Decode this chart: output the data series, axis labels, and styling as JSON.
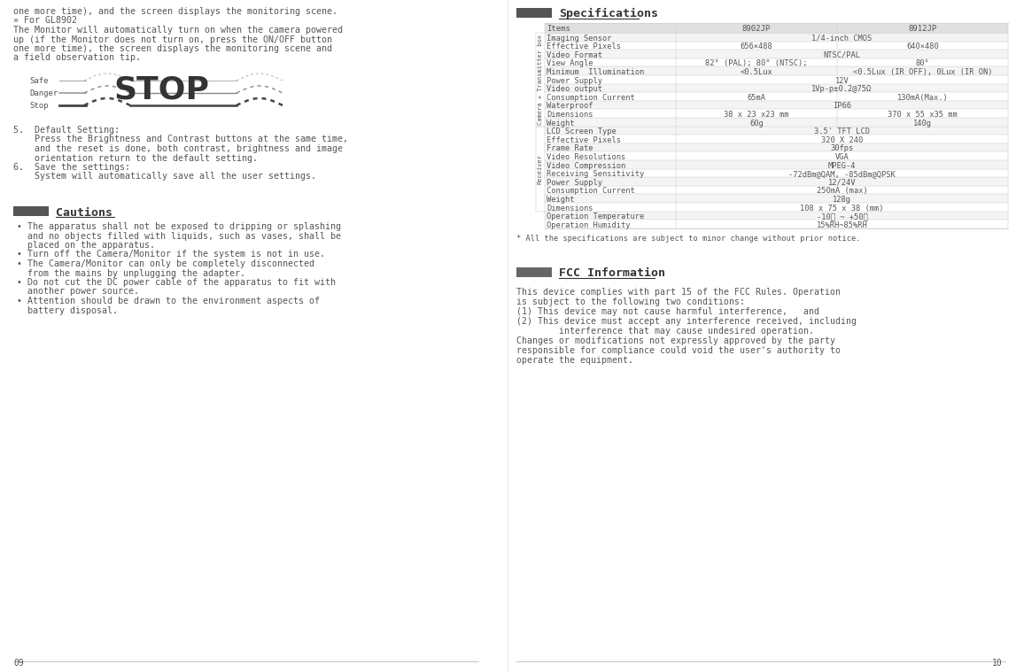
{
  "bg_color": "#ffffff",
  "text_color": "#555555",
  "dark_color": "#333333",
  "left_page": {
    "lines_top": [
      "one more time), and the screen displays the monitoring scene.",
      "» For GL8902",
      "The Monitor will automatically turn on when the camera powered",
      "up (if the Monitor does not turn on, press the ON/OFF button",
      "one more time), the screen displays the monitoring scene and",
      "a field observation tip."
    ],
    "items_5_6": [
      "5.  Default Setting:",
      "    Press the Brightness and Contrast buttons at the same time,",
      "    and the reset is done, both contrast, brightness and image",
      "    orientation return to the default setting.",
      "6.  Save the settings:",
      "    System will automatically save all the user settings."
    ],
    "cautions_title": "Cautions",
    "cautions_items": [
      [
        "The apparatus shall not be exposed to dripping or splashing",
        "and no objects filled with liquids, such as vases, shall be",
        "placed on the apparatus."
      ],
      [
        "Turn off the Camera/Monitor if the system is not in use."
      ],
      [
        "The Camera/Monitor can only be completely disconnected",
        "from the mains by unplugging the adapter."
      ],
      [
        "Do not cut the DC power cable of the apparatus to fit with",
        "another power source."
      ],
      [
        "Attention should be drawn to the environment aspects of",
        "battery disposal."
      ]
    ],
    "page_num": "09"
  },
  "right_page": {
    "spec_title": "Specifications",
    "spec_table": {
      "headers": [
        "Items",
        "8902JP",
        "8912JP"
      ],
      "camera_transmitter_rows": [
        [
          "Imaging Sensor",
          "1/4-inch CMOS",
          ""
        ],
        [
          "Effective Pixels",
          "656×488",
          "640×480"
        ],
        [
          "Video Format",
          "NTSC/PAL",
          ""
        ],
        [
          "View Angle",
          "82° (PAL); 80° (NTSC);",
          "80°"
        ],
        [
          "Minimum  Illumination",
          "<0.5Lux",
          "<0.5Lux (IR OFF), 0Lux (IR ON)"
        ],
        [
          "Power Supply",
          "12V",
          ""
        ],
        [
          "Video output",
          "1Vp-p±0.2@75Ω",
          ""
        ],
        [
          "Consumption Current",
          "65mA",
          "130mA(Max.)"
        ],
        [
          "Waterproof",
          "IP66",
          ""
        ],
        [
          "Dimensions",
          "38 x 23 x23 mm",
          "370 x 55 x35 mm"
        ],
        [
          "Weight",
          "60g",
          "140g"
        ]
      ],
      "receiver_rows": [
        [
          "LCD Screen Type",
          "3.5' TFT LCD",
          ""
        ],
        [
          "Effective Pixels",
          "320 X 240",
          ""
        ],
        [
          "Frame Rate",
          "30fps",
          ""
        ],
        [
          "Video Resolutions",
          "VGA",
          ""
        ],
        [
          "Video Compression",
          "MPEG-4",
          ""
        ],
        [
          "Receiving Sensitivity",
          "-72dBm@QAM, -85dBm@QPSK",
          ""
        ],
        [
          "Power Supply",
          "12/24V",
          ""
        ],
        [
          "Consumption Current",
          "250mA (max)",
          ""
        ],
        [
          "Weight",
          "128g",
          ""
        ],
        [
          "Dimensions",
          "108 x 75 x 38 (mm)",
          ""
        ]
      ],
      "common_rows": [
        [
          "Operation Temperature",
          "-10℃ ~ +50℃",
          ""
        ],
        [
          "Operation Humidity",
          "15%RH~85%RH",
          ""
        ]
      ]
    },
    "spec_note": "* All the specifications are subject to minor change without prior notice.",
    "fcc_title": "FCC Information",
    "fcc_lines": [
      "This device complies with part 15 of the FCC Rules. Operation",
      "is subject to the following two conditions:",
      "(1) This device may not cause harmful interference,   and",
      "(2) This device must accept any interference received, including",
      "        interference that may cause undesired operation.",
      "Changes or modifications not expressly approved by the party",
      "responsible for compliance could void the user's authority to",
      "operate the equipment."
    ],
    "page_num": "10"
  }
}
